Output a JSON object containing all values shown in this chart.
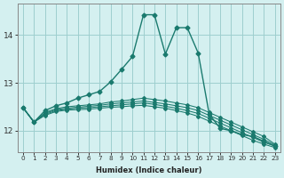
{
  "xlabel": "Humidex (Indice chaleur)",
  "background_color": "#d4f0f0",
  "grid_color": "#9ecece",
  "line_color": "#1a7a6e",
  "x_values": [
    0,
    1,
    2,
    3,
    4,
    5,
    6,
    7,
    8,
    9,
    10,
    11,
    12,
    13,
    14,
    15,
    16,
    17,
    18,
    19,
    20,
    21,
    22,
    23
  ],
  "series": [
    [
      12.48,
      12.18,
      12.42,
      12.52,
      12.58,
      12.68,
      12.75,
      12.82,
      13.02,
      13.28,
      13.55,
      14.42,
      14.42,
      13.6,
      14.15,
      14.15,
      13.62,
      12.35,
      12.05,
      12.0,
      11.92,
      11.88,
      11.78,
      11.68
    ],
    [
      12.48,
      12.18,
      12.38,
      12.46,
      12.5,
      12.52,
      12.54,
      12.56,
      12.6,
      12.62,
      12.65,
      12.68,
      12.65,
      12.62,
      12.58,
      12.54,
      12.48,
      12.38,
      12.28,
      12.18,
      12.08,
      11.98,
      11.88,
      11.72
    ],
    [
      12.48,
      12.18,
      12.36,
      12.44,
      12.47,
      12.49,
      12.51,
      12.53,
      12.56,
      12.58,
      12.6,
      12.62,
      12.59,
      12.56,
      12.52,
      12.48,
      12.42,
      12.32,
      12.22,
      12.12,
      12.02,
      11.92,
      11.82,
      11.7
    ],
    [
      12.48,
      12.18,
      12.34,
      12.42,
      12.45,
      12.47,
      12.48,
      12.5,
      12.52,
      12.54,
      12.56,
      12.58,
      12.55,
      12.51,
      12.47,
      12.42,
      12.36,
      12.26,
      12.16,
      12.06,
      11.96,
      11.86,
      11.76,
      11.68
    ],
    [
      12.48,
      12.18,
      12.32,
      12.4,
      12.43,
      12.44,
      12.45,
      12.47,
      12.49,
      12.5,
      12.52,
      12.53,
      12.5,
      12.47,
      12.42,
      12.37,
      12.3,
      12.2,
      12.1,
      12.0,
      11.9,
      11.8,
      11.72,
      11.65
    ]
  ],
  "ylim": [
    11.55,
    14.65
  ],
  "yticks": [
    12,
    13,
    14
  ],
  "xlim": [
    -0.5,
    23.5
  ],
  "xticks": [
    0,
    1,
    2,
    3,
    4,
    5,
    6,
    7,
    8,
    9,
    10,
    11,
    12,
    13,
    14,
    15,
    16,
    17,
    18,
    19,
    20,
    21,
    22,
    23
  ]
}
